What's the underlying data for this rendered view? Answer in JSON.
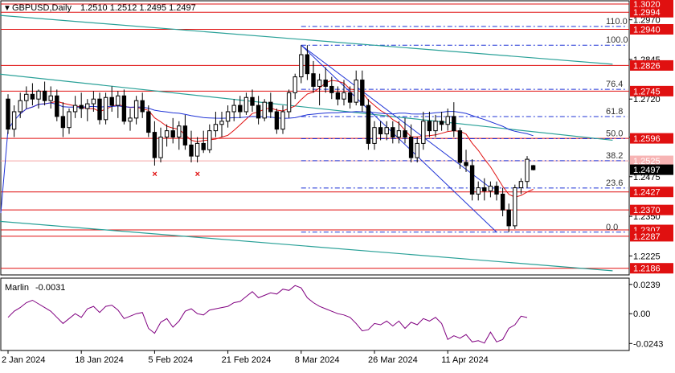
{
  "header": {
    "title": "GBPUSD,Daily",
    "ohlc": "1.2510 1.2512 1.2495 1.2497"
  },
  "colors": {
    "candle": "#000000",
    "trend": "#2aa198",
    "ma_short": "#e01010",
    "ma_long": "#1f33d6",
    "fib": "#1f33d6",
    "level": "#e01010",
    "marlin": "#800080",
    "mark_x": "#e01010"
  },
  "chart_data": [
    {
      "type": "candlestick",
      "symbol": "GBPUSD",
      "timeframe": "Daily",
      "ylim": [
        1.2165,
        1.303
      ],
      "price_ticks": [
        1.297,
        1.2845,
        1.272,
        1.26,
        1.2475,
        1.235,
        1.2225
      ],
      "x_tick_labels": [
        "2 Jan 2024",
        "18 Jan 2024",
        "5 Feb 2024",
        "21 Feb 2024",
        "8 Mar 2024",
        "26 Mar 2024",
        "11 Apr 2024"
      ],
      "x_tick_index": [
        0,
        12,
        24,
        36,
        48,
        60,
        72
      ],
      "candles": [
        [
          1.272,
          1.2735,
          1.261,
          1.2625
        ],
        [
          1.2625,
          1.27,
          1.26,
          1.268
        ],
        [
          1.268,
          1.274,
          1.266,
          1.2715
        ],
        [
          1.2715,
          1.276,
          1.269,
          1.2735
        ],
        [
          1.2735,
          1.277,
          1.27,
          1.272
        ],
        [
          1.272,
          1.275,
          1.269,
          1.2745
        ],
        [
          1.2745,
          1.2775,
          1.27,
          1.2715
        ],
        [
          1.2715,
          1.276,
          1.269,
          1.273
        ],
        [
          1.273,
          1.275,
          1.265,
          1.2665
        ],
        [
          1.2665,
          1.271,
          1.26,
          1.263
        ],
        [
          1.263,
          1.269,
          1.261,
          1.268
        ],
        [
          1.268,
          1.273,
          1.266,
          1.27
        ],
        [
          1.27,
          1.274,
          1.266,
          1.269
        ],
        [
          1.269,
          1.272,
          1.265,
          1.2705
        ],
        [
          1.2705,
          1.2745,
          1.268,
          1.272
        ],
        [
          1.272,
          1.274,
          1.264,
          1.2655
        ],
        [
          1.2655,
          1.274,
          1.264,
          1.2725
        ],
        [
          1.2725,
          1.276,
          1.268,
          1.27
        ],
        [
          1.27,
          1.2745,
          1.266,
          1.273
        ],
        [
          1.273,
          1.275,
          1.264,
          1.265
        ],
        [
          1.265,
          1.269,
          1.262,
          1.266
        ],
        [
          1.266,
          1.273,
          1.264,
          1.2715
        ],
        [
          1.2715,
          1.274,
          1.266,
          1.268
        ],
        [
          1.268,
          1.27,
          1.26,
          1.2615
        ],
        [
          1.2615,
          1.265,
          1.251,
          1.2535
        ],
        [
          1.2535,
          1.263,
          1.252,
          1.26
        ],
        [
          1.26,
          1.264,
          1.257,
          1.262
        ],
        [
          1.262,
          1.266,
          1.258,
          1.26
        ],
        [
          1.26,
          1.265,
          1.256,
          1.2635
        ],
        [
          1.2635,
          1.267,
          1.256,
          1.2575
        ],
        [
          1.2575,
          1.262,
          1.252,
          1.254
        ],
        [
          1.254,
          1.26,
          1.252,
          1.258
        ],
        [
          1.258,
          1.262,
          1.255,
          1.256
        ],
        [
          1.256,
          1.264,
          1.255,
          1.262
        ],
        [
          1.262,
          1.268,
          1.26,
          1.264
        ],
        [
          1.264,
          1.268,
          1.26,
          1.265
        ],
        [
          1.265,
          1.27,
          1.263,
          1.268
        ],
        [
          1.268,
          1.272,
          1.265,
          1.27
        ],
        [
          1.27,
          1.273,
          1.266,
          1.268
        ],
        [
          1.268,
          1.274,
          1.267,
          1.2725
        ],
        [
          1.2725,
          1.275,
          1.268,
          1.27
        ],
        [
          1.27,
          1.273,
          1.264,
          1.266
        ],
        [
          1.266,
          1.272,
          1.265,
          1.271
        ],
        [
          1.271,
          1.274,
          1.266,
          1.268
        ],
        [
          1.268,
          1.269,
          1.261,
          1.2625
        ],
        [
          1.2625,
          1.27,
          1.261,
          1.268
        ],
        [
          1.268,
          1.275,
          1.266,
          1.274
        ],
        [
          1.274,
          1.28,
          1.272,
          1.279
        ],
        [
          1.279,
          1.289,
          1.277,
          1.286
        ],
        [
          1.286,
          1.289,
          1.278,
          1.28
        ],
        [
          1.28,
          1.284,
          1.274,
          1.276
        ],
        [
          1.276,
          1.28,
          1.27,
          1.278
        ],
        [
          1.278,
          1.282,
          1.274,
          1.276
        ],
        [
          1.276,
          1.279,
          1.272,
          1.274
        ],
        [
          1.274,
          1.276,
          1.27,
          1.272
        ],
        [
          1.272,
          1.278,
          1.27,
          1.274
        ],
        [
          1.274,
          1.276,
          1.269,
          1.271
        ],
        [
          1.271,
          1.281,
          1.27,
          1.278
        ],
        [
          1.278,
          1.281,
          1.268,
          1.27
        ],
        [
          1.27,
          1.272,
          1.256,
          1.258
        ],
        [
          1.258,
          1.265,
          1.256,
          1.263
        ],
        [
          1.263,
          1.265,
          1.259,
          1.261
        ],
        [
          1.261,
          1.265,
          1.259,
          1.263
        ],
        [
          1.263,
          1.265,
          1.258,
          1.26
        ],
        [
          1.26,
          1.265,
          1.258,
          1.262
        ],
        [
          1.262,
          1.266,
          1.258,
          1.26
        ],
        [
          1.26,
          1.264,
          1.252,
          1.2535
        ],
        [
          1.2535,
          1.26,
          1.252,
          1.258
        ],
        [
          1.258,
          1.268,
          1.256,
          1.265
        ],
        [
          1.265,
          1.268,
          1.26,
          1.262
        ],
        [
          1.262,
          1.267,
          1.26,
          1.265
        ],
        [
          1.265,
          1.268,
          1.262,
          1.264
        ],
        [
          1.264,
          1.269,
          1.262,
          1.2665
        ],
        [
          1.2665,
          1.271,
          1.26,
          1.262
        ],
        [
          1.262,
          1.263,
          1.25,
          1.252
        ],
        [
          1.252,
          1.256,
          1.249,
          1.251
        ],
        [
          1.251,
          1.253,
          1.24,
          1.242
        ],
        [
          1.242,
          1.246,
          1.24,
          1.244
        ],
        [
          1.244,
          1.247,
          1.24,
          1.243
        ],
        [
          1.243,
          1.246,
          1.241,
          1.2445
        ],
        [
          1.2445,
          1.246,
          1.24,
          1.242
        ],
        [
          1.242,
          1.244,
          1.235,
          1.237
        ],
        [
          1.237,
          1.239,
          1.23,
          1.232
        ],
        [
          1.232,
          1.245,
          1.231,
          1.244
        ],
        [
          1.244,
          1.247,
          1.242,
          1.246
        ],
        [
          1.246,
          1.254,
          1.244,
          1.253
        ],
        [
          1.251,
          1.2512,
          1.2495,
          1.2497
        ]
      ],
      "level_labels": [
        "1.3020",
        "1.2994",
        "1.2940",
        "1.2826",
        "1.2745",
        "1.2596",
        "1.2525",
        "1.2427",
        "1.2370",
        "1.2307",
        "1.2287",
        "1.2186"
      ],
      "levels": [
        1.302,
        1.2994,
        1.294,
        1.2826,
        1.2745,
        1.2596,
        1.2525,
        1.2427,
        1.237,
        1.2307,
        1.2287,
        1.2186
      ],
      "current_price_label": "1.2497",
      "current_price": 1.2497,
      "fib": {
        "start_index": 48,
        "end_index": 86,
        "high": 1.289,
        "low": 1.23,
        "labels": [
          "110.0",
          "100.0",
          "76.4",
          "61.8",
          "50.0",
          "38.2",
          "23.6",
          "0.0"
        ],
        "ratios": [
          1.1,
          1.0,
          0.764,
          0.618,
          0.5,
          0.382,
          0.236,
          0.0
        ]
      },
      "trendlines": [
        {
          "from": [
            -2,
            1.2985
          ],
          "to": [
            99,
            1.283
          ]
        },
        {
          "from": [
            -2,
            1.28
          ],
          "to": [
            99,
            1.259
          ]
        },
        {
          "from": [
            -2,
            1.2335
          ],
          "to": [
            99,
            1.2178
          ]
        }
      ],
      "fan_lines": [
        {
          "from": [
            48,
            1.289
          ],
          "to": [
            79,
            1.244
          ]
        },
        {
          "from": [
            48,
            1.289
          ],
          "to": [
            80,
            1.23
          ]
        }
      ],
      "cross_marks_index": [
        24,
        31
      ],
      "cross_marks_price": 1.251
    },
    {
      "type": "line",
      "indicator": "Marlin",
      "value_label": "-0.0031",
      "ylim": [
        -0.03,
        0.029
      ],
      "ticks": [
        "0.0239",
        "0.00",
        "-0.0243"
      ],
      "tick_values": [
        0.0239,
        0.0,
        -0.0243
      ],
      "values": [
        -0.003,
        0.002,
        0.005,
        0.009,
        0.011,
        0.008,
        0.005,
        0.002,
        -0.003,
        -0.008,
        -0.004,
        0.0,
        -0.003,
        0.004,
        0.006,
        0.001,
        0.006,
        0.007,
        0.003,
        -0.004,
        -0.002,
        0.0,
        0.001,
        -0.012,
        -0.016,
        -0.007,
        -0.004,
        -0.011,
        -0.006,
        0.002,
        0.004,
        0.0,
        -0.001,
        0.003,
        0.004,
        0.005,
        0.006,
        0.009,
        0.01,
        0.014,
        0.018,
        0.013,
        0.015,
        0.017,
        0.016,
        0.02,
        0.019,
        0.023,
        0.021,
        0.013,
        0.009,
        0.006,
        0.004,
        0.002,
        0.0,
        -0.001,
        -0.003,
        -0.008,
        -0.014,
        -0.013,
        -0.008,
        -0.009,
        -0.006,
        -0.01,
        -0.006,
        -0.012,
        -0.007,
        -0.009,
        -0.004,
        -0.006,
        -0.003,
        -0.008,
        -0.021,
        -0.018,
        -0.02,
        -0.017,
        -0.023,
        -0.022,
        -0.024,
        -0.015,
        -0.023,
        -0.021,
        -0.012,
        -0.009,
        -0.002,
        -0.0031
      ]
    }
  ]
}
